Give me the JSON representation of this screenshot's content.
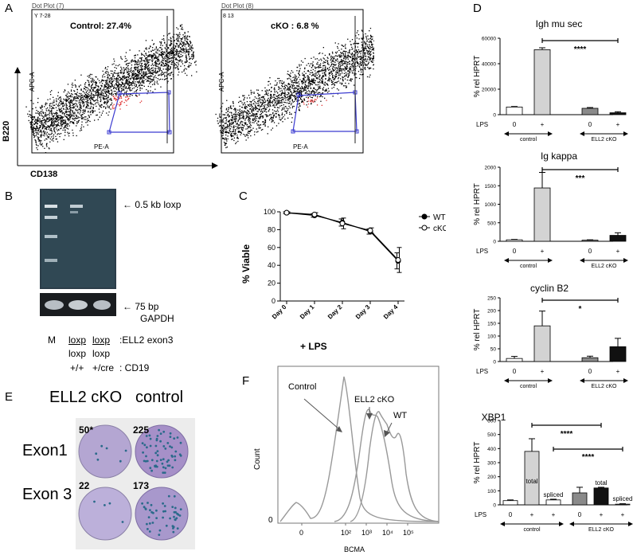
{
  "panel_a": {
    "letter": "A",
    "plots": [
      {
        "dot_title": "Dot Plot (7)",
        "gate_id": "Y 7-28",
        "gate_label": "Control: 27.4%",
        "x_axis": "PE-A",
        "y_axis": "APC-A"
      },
      {
        "dot_title": "Dot Plot (8)",
        "gate_id": "8 13",
        "gate_label": "cKO : 6.8 %",
        "x_axis": "PE-A",
        "y_axis": "APC-A"
      }
    ],
    "outer_y_label": "B220",
    "outer_x_label": "CD138"
  },
  "panel_b": {
    "letter": "B",
    "band_top": "← 0.5 kb loxp",
    "band_bottom": "← 75 bp",
    "band_bottom2": "GAPDH",
    "lane_m": "M",
    "row1": [
      "loxp",
      "loxp",
      ":ELL2 exon3"
    ],
    "row2": [
      "loxp",
      "loxp"
    ],
    "row3": [
      "+/+",
      "+/cre",
      ": CD19"
    ]
  },
  "panel_c": {
    "letter": "C",
    "chart_data": {
      "type": "line",
      "categories": [
        "Day 0",
        "Day 1",
        "Day 2",
        "Day 3",
        "Day 4"
      ],
      "series": [
        {
          "name": "WT",
          "values": [
            99,
            96,
            88,
            78,
            45
          ],
          "err": [
            1,
            2,
            4,
            3,
            9
          ]
        },
        {
          "name": "cKO",
          "values": [
            99,
            97,
            87,
            79,
            46
          ],
          "err": [
            1,
            2,
            6,
            3,
            14
          ]
        }
      ],
      "ylabel": "% Viable",
      "xlabel": "+ LPS",
      "ylim": [
        0,
        100
      ],
      "yticks": [
        "0",
        "20",
        "40",
        "60",
        "80",
        "100"
      ]
    }
  },
  "panel_d": {
    "letter": "D",
    "charts": [
      {
        "title": "Igh mu sec",
        "ylabel": "% rel HPRT",
        "yticks": [
          "0",
          "20000",
          "40000",
          "60000"
        ],
        "ymax": 60000,
        "values": [
          6000,
          51000,
          5000,
          1500
        ],
        "err": [
          400,
          1500,
          600,
          800
        ],
        "fills": [
          "#ffffff",
          "#d3d3d3",
          "#8a8a8a",
          "#111111"
        ],
        "xrow_label": "LPS",
        "xticks": [
          "0",
          "+",
          "0",
          "+"
        ],
        "groups": [
          "control",
          "ELL2 cKO"
        ],
        "sig": "****"
      },
      {
        "title": "Ig kappa",
        "ylabel": "% rel HPRT",
        "yticks": [
          "0",
          "500",
          "1000",
          "1500",
          "2000"
        ],
        "ymax": 2000,
        "values": [
          40,
          1440,
          30,
          160
        ],
        "err": [
          10,
          420,
          10,
          70
        ],
        "fills": [
          "#ffffff",
          "#d3d3d3",
          "#8a8a8a",
          "#111111"
        ],
        "xrow_label": "LPS",
        "xticks": [
          "0",
          "+",
          "0",
          "+"
        ],
        "groups": [
          "control",
          "ELL2 cKO"
        ],
        "sig": "***"
      },
      {
        "title": "cyclin B2",
        "ylabel": "% rel HPRT",
        "yticks": [
          "0",
          "50",
          "100",
          "150",
          "200",
          "250"
        ],
        "ymax": 250,
        "values": [
          12,
          140,
          15,
          58
        ],
        "err": [
          8,
          58,
          6,
          33
        ],
        "fills": [
          "#ffffff",
          "#d3d3d3",
          "#8a8a8a",
          "#111111"
        ],
        "xrow_label": "LPS",
        "xticks": [
          "0",
          "+",
          "0",
          "+"
        ],
        "groups": [
          "control",
          "ELL2 cKO"
        ],
        "sig": "*"
      }
    ],
    "xbp1": {
      "title": "XBP1",
      "ylabel": "% rel HPRT",
      "yticks": [
        "0",
        "100",
        "200",
        "300",
        "400",
        "500",
        "600"
      ],
      "ymax": 600,
      "values": [
        30,
        380,
        35,
        85,
        120,
        5
      ],
      "err": [
        5,
        90,
        5,
        40,
        5,
        3
      ],
      "fills": [
        "#ffffff",
        "#d3d3d3",
        "#ffffff",
        "#8a8a8a",
        "#111111",
        "#ffffff"
      ],
      "bar_labels": [
        "",
        "total",
        "spliced",
        "",
        "total",
        "spliced"
      ],
      "xrow_label": "LPS",
      "xticks": [
        "0",
        "+",
        "+",
        "0",
        "+",
        "+"
      ],
      "groups": [
        "control",
        "ELL2 cKO"
      ],
      "sig1": "****",
      "sig2": "****"
    }
  },
  "panel_e": {
    "letter": "E",
    "col1": "ELL2 cKO",
    "col2": "control",
    "row1": "Exon1",
    "row2": "Exon 3",
    "counts": [
      "50*",
      "225",
      "22",
      "173"
    ]
  },
  "panel_f": {
    "letter": "F",
    "ylabel": "Count",
    "xlabel": "BCMA",
    "zero": "0",
    "xticks": [
      "0",
      "10²",
      "10³",
      "10⁴",
      "10⁵"
    ],
    "labels": [
      "Control",
      "ELL2 cKO",
      "WT"
    ]
  },
  "colors": {
    "gate": "#3a3ad0",
    "gated_events": "#e03030",
    "gel_bg": "#2a3a44",
    "plate_bg": "#b6a8d2",
    "colony": "#2a6a8a"
  }
}
